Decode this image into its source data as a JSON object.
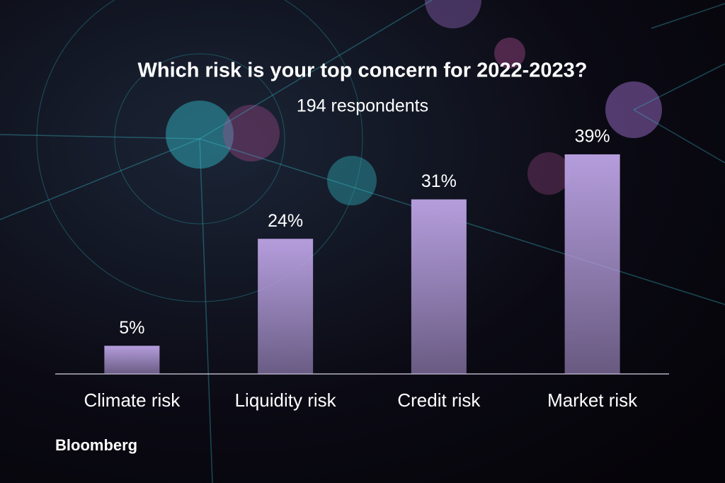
{
  "chart_data": {
    "type": "bar",
    "title": "Which risk is your top concern for 2022-2023?",
    "subtitle": "194 respondents",
    "categories": [
      "Climate risk",
      "Liquidity risk",
      "Credit risk",
      "Market risk"
    ],
    "values": [
      5,
      24,
      31,
      39
    ],
    "value_labels": [
      "5%",
      "24%",
      "31%",
      "39%"
    ],
    "color": "#b59ddc",
    "logo": "Bloomberg"
  }
}
